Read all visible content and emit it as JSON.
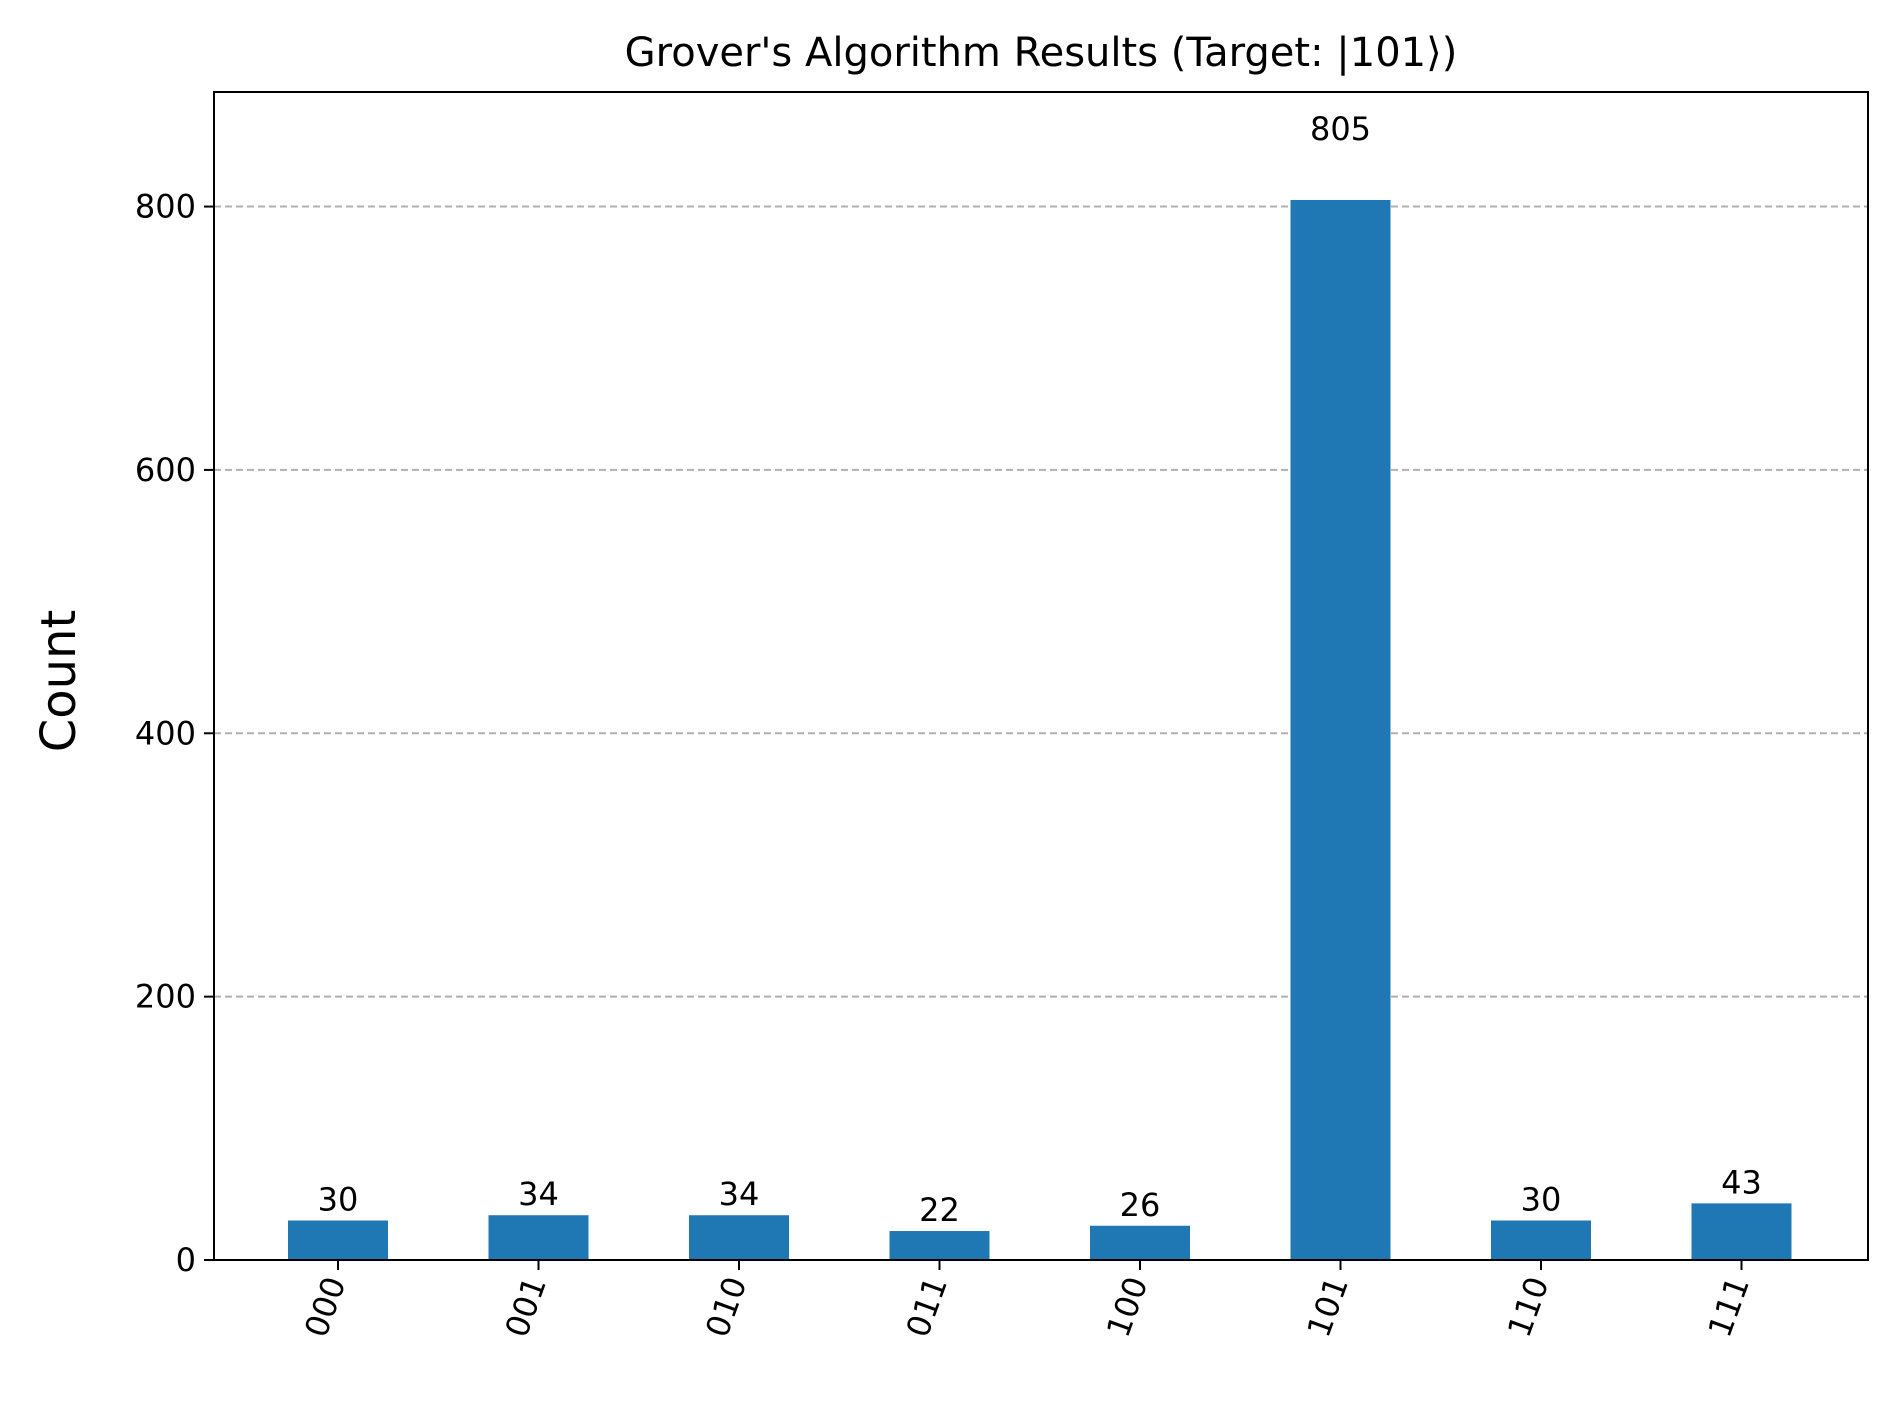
{
  "chart_data": {
    "type": "bar",
    "title": "Grover's Algorithm Results (Target: |101⟩)",
    "xlabel": "",
    "ylabel": "Count",
    "categories": [
      "000",
      "001",
      "010",
      "011",
      "100",
      "101",
      "110",
      "111"
    ],
    "values": [
      30,
      34,
      34,
      22,
      26,
      805,
      30,
      43
    ],
    "ylim": [
      0,
      887
    ],
    "yticks": [
      0,
      200,
      400,
      600,
      800
    ],
    "grid": "y-dashed",
    "bar_color": "#1f77b4",
    "grid_color": "#b0b0b0",
    "xtick_rotation": 70
  }
}
